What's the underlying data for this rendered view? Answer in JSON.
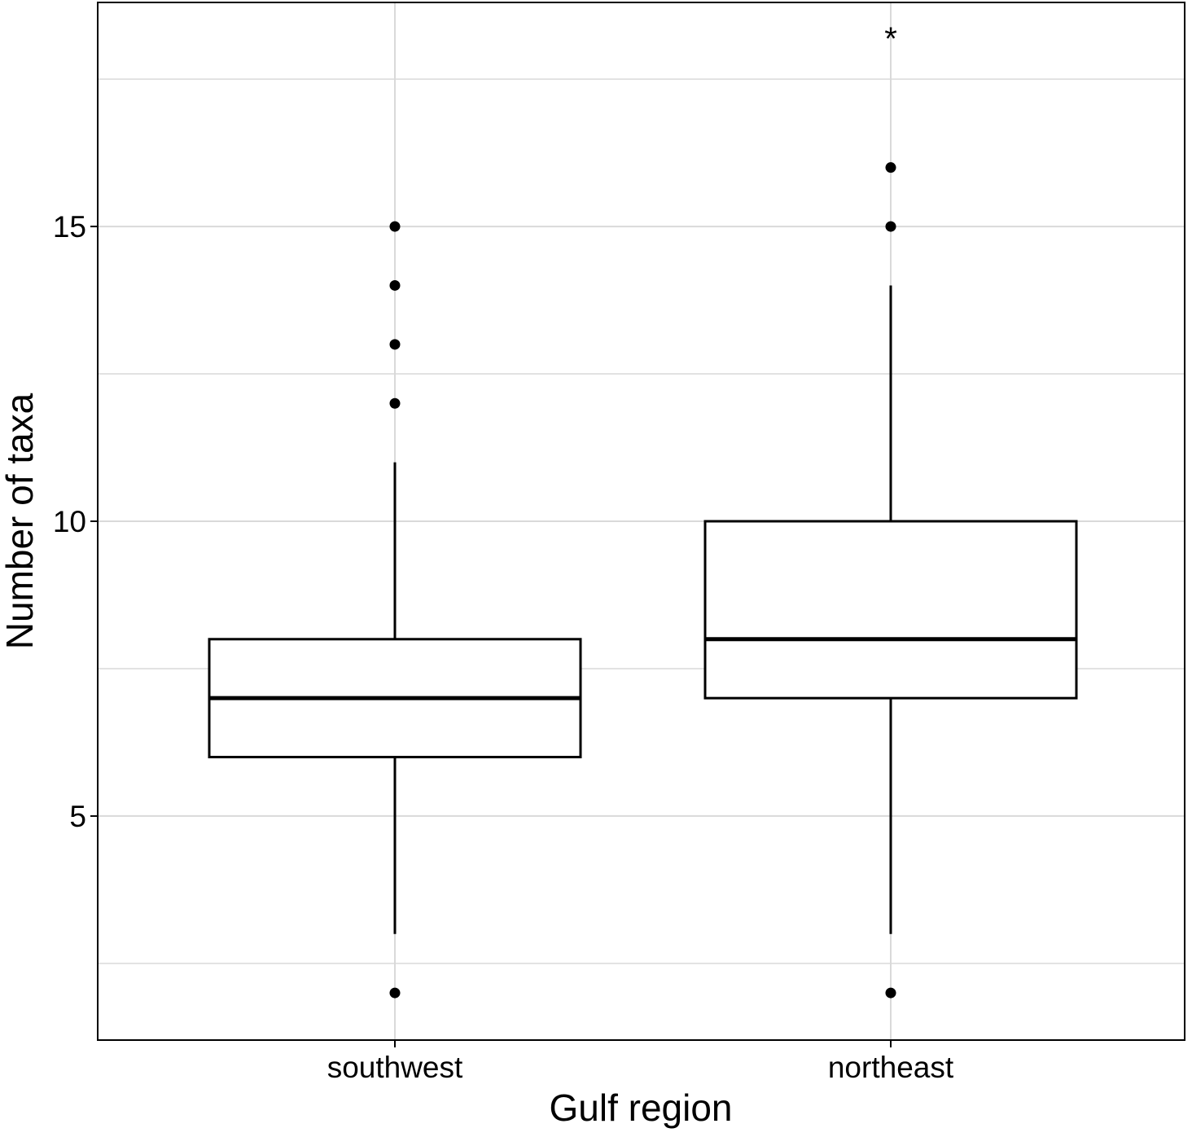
{
  "chart_data": {
    "type": "box",
    "xlabel": "Gulf region",
    "ylabel": "Number of taxa",
    "ylim": [
      1.2,
      18.8
    ],
    "yticks": [
      5,
      10,
      15
    ],
    "y_minor_gridlines": [
      2.5,
      7.5,
      12.5,
      17.5
    ],
    "grid": true,
    "categories": [
      "southwest",
      "northeast"
    ],
    "boxes": [
      {
        "category": "southwest",
        "whisker_low": 3,
        "q1": 6,
        "median": 7,
        "q3": 8,
        "whisker_high": 11,
        "outliers": [
          2,
          12,
          13,
          14,
          15
        ],
        "annotation": ""
      },
      {
        "category": "northeast",
        "whisker_low": 3,
        "q1": 7,
        "median": 8,
        "q3": 10,
        "whisker_high": 14,
        "outliers": [
          2,
          15,
          16
        ],
        "annotation": "*"
      }
    ]
  },
  "colors": {
    "grid": "#d9d9d9",
    "box_stroke": "#000000",
    "box_fill": "#ffffff",
    "panel_border": "#000000"
  }
}
